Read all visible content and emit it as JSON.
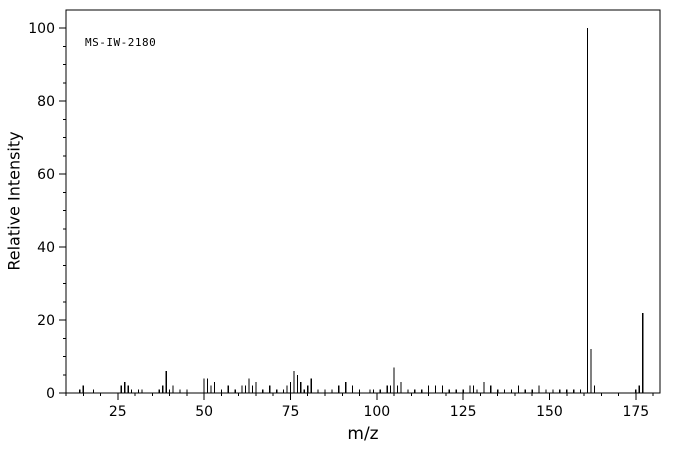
{
  "chart_data": {
    "type": "bar",
    "subtype": "mass-spectrum",
    "title": "",
    "annotation": "MS-IW-2180",
    "xlabel": "m/z",
    "ylabel": "Relative Intensity",
    "xlim": [
      10,
      182
    ],
    "ylim": [
      0,
      105
    ],
    "x_major_ticks": [
      25,
      50,
      75,
      100,
      125,
      150,
      175
    ],
    "x_minor_step": 5,
    "y_major_ticks": [
      0,
      20,
      40,
      60,
      80,
      100
    ],
    "y_minor_step": 5,
    "grid": false,
    "legend": "none",
    "peak_format": [
      "mz",
      "relative_intensity"
    ],
    "peaks": [
      [
        14,
        1
      ],
      [
        15,
        2
      ],
      [
        18,
        1
      ],
      [
        26,
        2
      ],
      [
        27,
        3
      ],
      [
        28,
        2
      ],
      [
        29,
        1
      ],
      [
        31,
        1
      ],
      [
        32,
        1
      ],
      [
        37,
        1
      ],
      [
        38,
        2
      ],
      [
        39,
        6
      ],
      [
        40,
        1
      ],
      [
        41,
        2
      ],
      [
        43,
        1
      ],
      [
        45,
        1
      ],
      [
        50,
        4
      ],
      [
        51,
        4
      ],
      [
        52,
        2
      ],
      [
        53,
        3
      ],
      [
        55,
        1
      ],
      [
        57,
        2
      ],
      [
        59,
        1
      ],
      [
        61,
        2
      ],
      [
        62,
        2
      ],
      [
        63,
        4
      ],
      [
        64,
        2
      ],
      [
        65,
        3
      ],
      [
        67,
        1
      ],
      [
        69,
        2
      ],
      [
        71,
        1
      ],
      [
        73,
        1
      ],
      [
        74,
        2
      ],
      [
        75,
        3
      ],
      [
        76,
        6
      ],
      [
        77,
        5
      ],
      [
        78,
        3
      ],
      [
        79,
        1
      ],
      [
        80,
        2
      ],
      [
        81,
        4
      ],
      [
        83,
        1
      ],
      [
        85,
        1
      ],
      [
        87,
        1
      ],
      [
        89,
        2
      ],
      [
        91,
        3
      ],
      [
        93,
        2
      ],
      [
        95,
        1
      ],
      [
        98,
        1
      ],
      [
        99,
        1
      ],
      [
        101,
        1
      ],
      [
        103,
        2
      ],
      [
        104,
        2
      ],
      [
        105,
        7
      ],
      [
        106,
        2
      ],
      [
        107,
        3
      ],
      [
        109,
        1
      ],
      [
        111,
        1
      ],
      [
        113,
        1
      ],
      [
        115,
        2
      ],
      [
        117,
        2
      ],
      [
        119,
        2
      ],
      [
        121,
        1
      ],
      [
        123,
        1
      ],
      [
        125,
        1
      ],
      [
        127,
        2
      ],
      [
        128,
        2
      ],
      [
        129,
        1
      ],
      [
        131,
        3
      ],
      [
        133,
        2
      ],
      [
        135,
        1
      ],
      [
        137,
        1
      ],
      [
        139,
        1
      ],
      [
        141,
        2
      ],
      [
        143,
        1
      ],
      [
        145,
        1
      ],
      [
        147,
        2
      ],
      [
        149,
        1
      ],
      [
        151,
        1
      ],
      [
        153,
        1
      ],
      [
        155,
        1
      ],
      [
        157,
        1
      ],
      [
        159,
        1
      ],
      [
        161,
        100
      ],
      [
        162,
        12
      ],
      [
        163,
        2
      ],
      [
        175,
        1
      ],
      [
        176,
        2
      ],
      [
        177,
        22
      ]
    ]
  },
  "colors": {
    "background": "#ffffff",
    "axis": "#000000",
    "peak": "#000000",
    "text": "#000000"
  }
}
